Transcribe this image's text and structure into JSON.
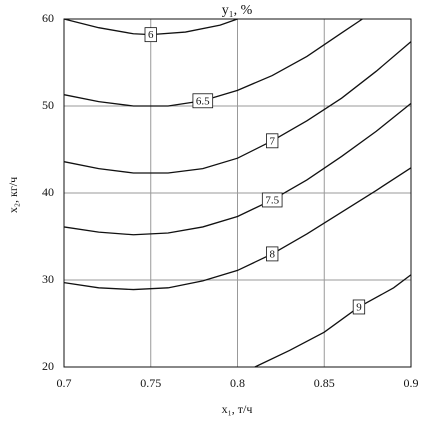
{
  "chart_data": {
    "type": "contour",
    "title": "y₁, %",
    "xlabel": "x₁, т/ч",
    "ylabel": "x₂, кг/ч",
    "xlim": [
      0.7,
      0.9
    ],
    "ylim": [
      20,
      60
    ],
    "xticks": [
      0.7,
      0.75,
      0.8,
      0.85,
      0.9
    ],
    "yticks": [
      20,
      30,
      40,
      50,
      60
    ],
    "grid": true,
    "color": "#111111",
    "contours": [
      {
        "level": 6,
        "x": [
          0.7,
          0.72,
          0.74,
          0.75,
          0.77,
          0.79,
          0.8
        ],
        "y": [
          60,
          59.0,
          58.3,
          58.2,
          58.5,
          59.3,
          60
        ]
      },
      {
        "level": 6.5,
        "x": [
          0.7,
          0.72,
          0.74,
          0.76,
          0.78,
          0.8,
          0.82,
          0.84,
          0.86,
          0.872
        ],
        "y": [
          51.3,
          50.5,
          50.0,
          50.0,
          50.6,
          51.8,
          53.5,
          55.7,
          58.4,
          60
        ]
      },
      {
        "level": 7,
        "x": [
          0.7,
          0.72,
          0.74,
          0.76,
          0.78,
          0.8,
          0.82,
          0.84,
          0.86,
          0.88,
          0.9
        ],
        "y": [
          43.6,
          42.8,
          42.3,
          42.3,
          42.8,
          44.0,
          46.0,
          48.3,
          50.9,
          54.0,
          57.4
        ]
      },
      {
        "level": 7.5,
        "x": [
          0.7,
          0.72,
          0.74,
          0.76,
          0.78,
          0.8,
          0.82,
          0.84,
          0.86,
          0.88,
          0.9
        ],
        "y": [
          36.1,
          35.5,
          35.2,
          35.4,
          36.1,
          37.3,
          39.2,
          41.5,
          44.2,
          47.1,
          50.3
        ]
      },
      {
        "level": 8,
        "x": [
          0.7,
          0.72,
          0.74,
          0.76,
          0.78,
          0.8,
          0.82,
          0.84,
          0.86,
          0.88,
          0.9
        ],
        "y": [
          29.7,
          29.1,
          28.9,
          29.1,
          29.9,
          31.1,
          33.0,
          35.3,
          37.8,
          40.3,
          42.9
        ]
      },
      {
        "level": 9,
        "x": [
          0.81,
          0.83,
          0.85,
          0.87,
          0.89,
          0.9
        ],
        "y": [
          20,
          21.9,
          24.0,
          26.9,
          29.1,
          30.6
        ]
      }
    ]
  }
}
